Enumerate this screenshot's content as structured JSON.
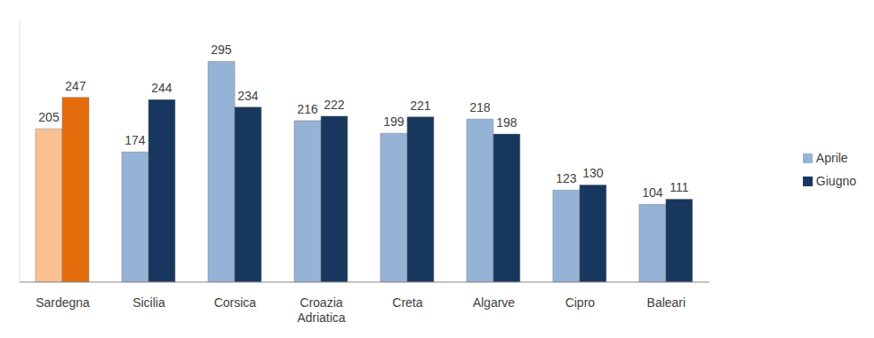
{
  "chart_data": {
    "type": "bar",
    "categories": [
      "Sardegna",
      "Sicilia",
      "Corsica",
      "Croazia Adriatica",
      "Creta",
      "Algarve",
      "Cipro",
      "Baleari"
    ],
    "series": [
      {
        "name": "Aprile",
        "color": "#95b3d7",
        "colors": [
          "#fac090",
          "#95b3d7",
          "#95b3d7",
          "#95b3d7",
          "#95b3d7",
          "#95b3d7",
          "#95b3d7",
          "#95b3d7"
        ],
        "values": [
          205,
          174,
          295,
          216,
          199,
          218,
          123,
          104
        ]
      },
      {
        "name": "Giugno",
        "color": "#17375e",
        "colors": [
          "#e46c0a",
          "#17375e",
          "#17375e",
          "#17375e",
          "#17375e",
          "#17375e",
          "#17375e",
          "#17375e"
        ],
        "values": [
          247,
          244,
          234,
          222,
          221,
          198,
          130,
          111
        ]
      }
    ],
    "ylim": [
      0,
      350
    ],
    "yticks": [],
    "data_labels": true,
    "tick_labels": "x",
    "legend": "right"
  }
}
